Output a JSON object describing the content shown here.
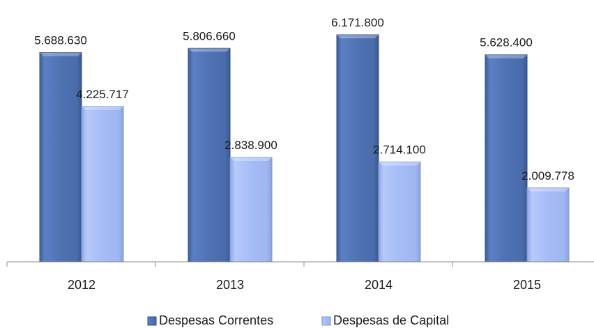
{
  "chart_data": {
    "type": "bar",
    "categories": [
      "2012",
      "2013",
      "2014",
      "2015"
    ],
    "series": [
      {
        "name": "Despesas Correntes",
        "values": [
          5688630,
          5806660,
          6171800,
          5628400
        ],
        "labels": [
          "5.688.630",
          "5.806.660",
          "6.171.800",
          "5.628.400"
        ],
        "color": "#4f72b3"
      },
      {
        "name": "Despesas de Capital",
        "values": [
          4225717,
          2838900,
          2714100,
          2009778
        ],
        "labels": [
          "4.225.717",
          "2.838.900",
          "2.714.100",
          "2.009.778"
        ],
        "color": "#a3b9f5"
      }
    ],
    "title": "",
    "xlabel": "",
    "ylabel": "",
    "ylim": [
      0,
      6500000
    ],
    "grid": false,
    "legend": "bottom"
  }
}
